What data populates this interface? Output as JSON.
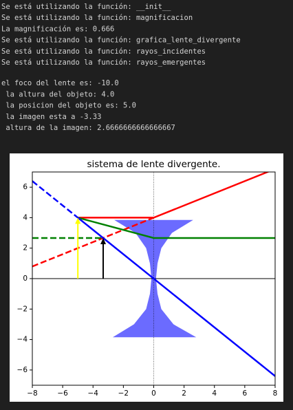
{
  "console": {
    "block1": [
      "Se está utilizando la función: __init__",
      "Se está utilizando la función: magnificacion",
      "La magnificación es: 0.666",
      "Se está utilizando la función: grafica_lente_divergente",
      "Se está utilizando la función: rayos_incidentes",
      "Se está utilizando la función: rayos_emergentes"
    ],
    "block2": [
      "el foco del lente es: -10.0",
      " la altura del objeto: 4.0",
      " la posicion del objeto es: 5.0",
      " la imagen esta a -3.33",
      " altura de la imagen: 2.6666666666666667"
    ]
  },
  "chart_data": {
    "type": "line",
    "title": "sistema de lente divergente.",
    "xlim": [
      -8,
      8
    ],
    "ylim": [
      -7,
      7
    ],
    "xticks": [
      {
        "value": -8,
        "label": "−8"
      },
      {
        "value": -6,
        "label": "−6"
      },
      {
        "value": -4,
        "label": "−4"
      },
      {
        "value": -2,
        "label": "−2"
      },
      0,
      2,
      4,
      6,
      8
    ],
    "yticks": [
      {
        "value": -6,
        "label": "−6"
      },
      {
        "value": -4,
        "label": "−4"
      },
      {
        "value": -2,
        "label": "−2"
      },
      0,
      2,
      4,
      6
    ],
    "hline": 0,
    "vline": 0,
    "lens": {
      "color": "#6b6bff",
      "x": [
        -2.6,
        2.6,
        1.2,
        0.5,
        0.25,
        0.15,
        0.25,
        0.5,
        1.3,
        2.8,
        -2.7,
        -1.3,
        -0.5,
        -0.25,
        -0.15,
        -0.25,
        -0.5,
        -1.2
      ],
      "y": [
        3.85,
        3.85,
        3.0,
        2.0,
        1.0,
        0,
        -1.0,
        -2.0,
        -3.0,
        -3.85,
        -3.85,
        -3.0,
        -2.0,
        -1.0,
        0,
        1.0,
        2.0,
        3.0
      ]
    },
    "series": [
      {
        "color": "#ff0000",
        "style": "solid",
        "x": [
          -5,
          0,
          8
        ],
        "values": [
          4,
          4,
          7.2
        ]
      },
      {
        "color": "#ff0000",
        "style": "dashed",
        "x": [
          -8,
          0
        ],
        "values": [
          0.8,
          4
        ]
      },
      {
        "color": "#008000",
        "style": "solid",
        "x": [
          -5,
          0,
          8
        ],
        "values": [
          4,
          2.667,
          2.667
        ]
      },
      {
        "color": "#008000",
        "style": "dashed",
        "x": [
          -8,
          -3.33
        ],
        "values": [
          2.667,
          2.667
        ]
      },
      {
        "color": "#0000ff",
        "style": "solid",
        "x": [
          -5,
          8
        ],
        "values": [
          4,
          -6.4
        ]
      },
      {
        "color": "#0000ff",
        "style": "dashed",
        "x": [
          -8,
          -5
        ],
        "values": [
          6.4,
          4
        ]
      }
    ],
    "arrows": [
      {
        "color": "#ffff00",
        "x": -5,
        "values": [
          0,
          4
        ]
      },
      {
        "color": "#000000",
        "x": -3.33,
        "values": [
          0,
          2.667
        ]
      }
    ]
  }
}
